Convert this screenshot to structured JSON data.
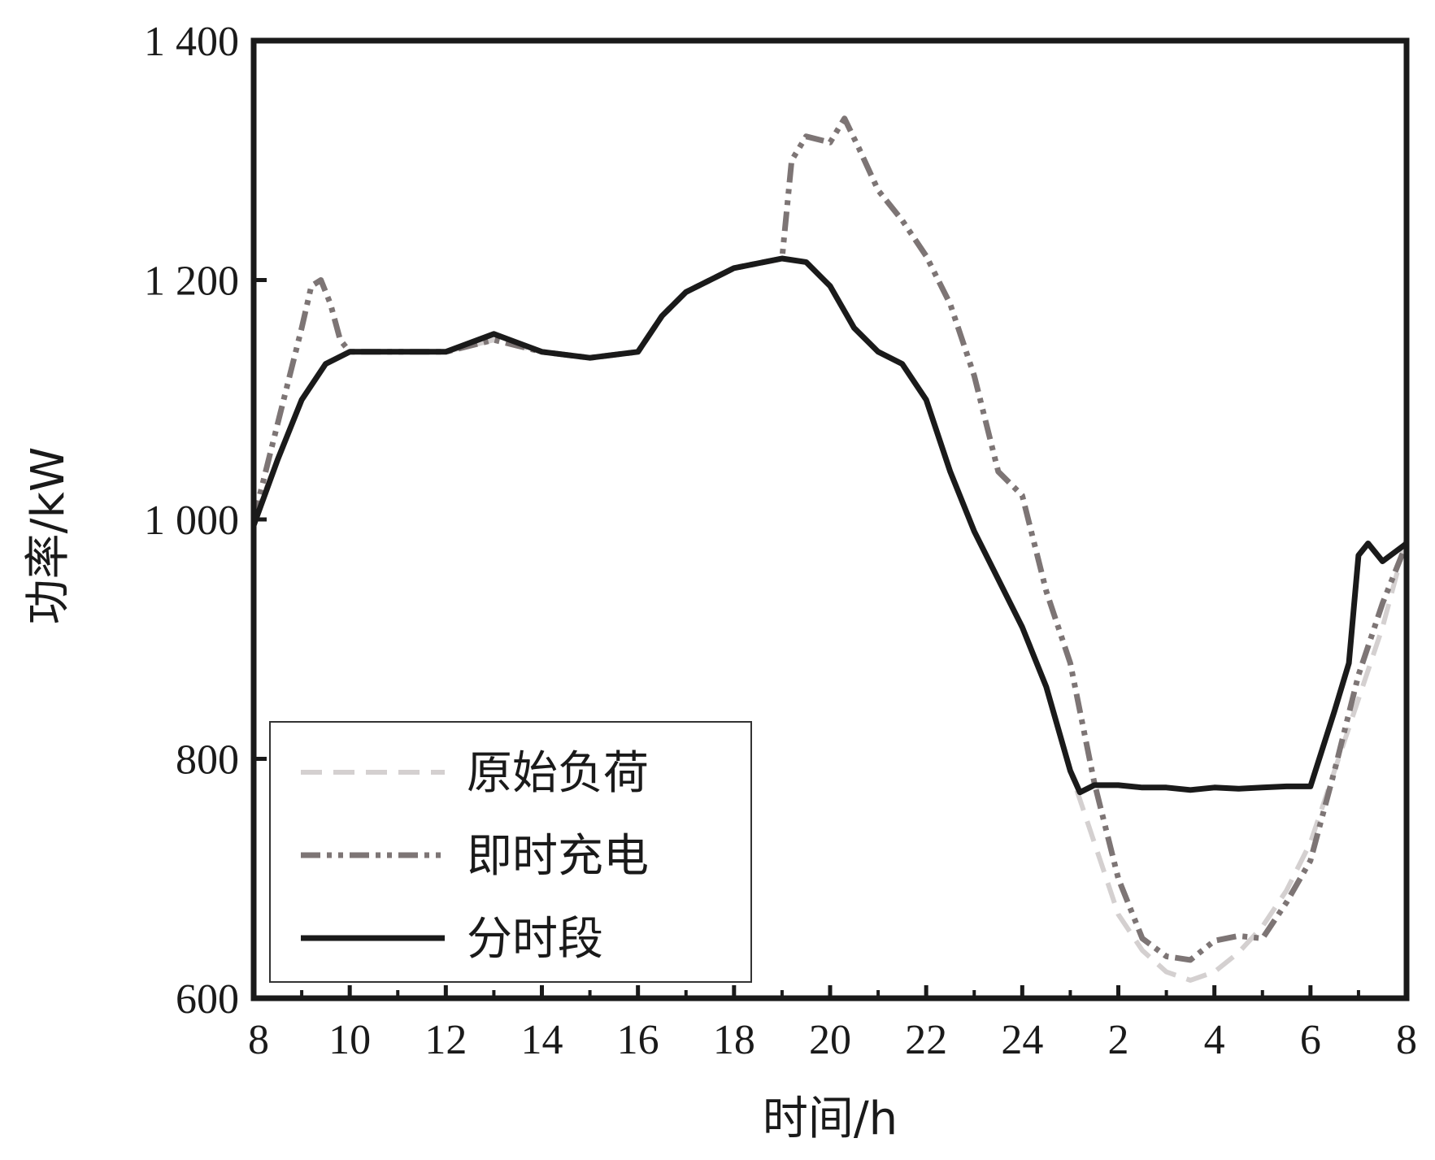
{
  "chart_data": {
    "type": "line",
    "title": "",
    "xlabel": "时间/h",
    "ylabel": "功率/kW",
    "ylim": [
      600,
      1400
    ],
    "xlim_hours_elapsed": [
      0,
      24
    ],
    "x_tick_labels": [
      "8",
      "10",
      "12",
      "14",
      "16",
      "18",
      "20",
      "22",
      "24",
      "2",
      "4",
      "6",
      "8"
    ],
    "y_tick_labels": [
      "600",
      "800",
      "1 000",
      "1 200",
      "1 400"
    ],
    "y_tick_values": [
      600,
      800,
      1000,
      1200,
      1400
    ],
    "grid": false,
    "legend_position": "bottom-left",
    "series": [
      {
        "name": "原始负荷",
        "style": "dashed",
        "color": "#d4d0d0",
        "x": [
          8,
          8.5,
          9,
          9.5,
          10,
          11,
          12,
          13,
          14,
          15,
          16,
          16.5,
          17,
          18,
          19,
          19.5,
          20,
          20.5,
          21,
          21.5,
          22,
          22.5,
          23,
          23.5,
          24,
          24.5,
          25,
          25.5,
          26,
          26.5,
          27,
          27.5,
          28,
          28.5,
          29,
          29.5,
          30,
          30.5,
          31,
          31.5,
          32
        ],
        "values": [
          1000,
          1050,
          1100,
          1130,
          1140,
          1140,
          1140,
          1150,
          1140,
          1135,
          1140,
          1170,
          1190,
          1210,
          1218,
          1215,
          1195,
          1160,
          1140,
          1130,
          1100,
          1040,
          990,
          950,
          910,
          860,
          790,
          730,
          670,
          640,
          622,
          615,
          622,
          638,
          660,
          690,
          730,
          790,
          850,
          910,
          985
        ]
      },
      {
        "name": "即时充电",
        "style": "dash-dot-dot",
        "color": "#7d7575",
        "x": [
          8,
          8.5,
          9,
          9.2,
          9.4,
          9.6,
          9.8,
          10,
          11,
          12,
          13,
          14,
          15,
          16,
          16.5,
          17,
          18,
          19,
          19.2,
          19.5,
          20,
          20.3,
          20.6,
          21,
          21.5,
          22,
          22.5,
          23,
          23.5,
          24,
          24.5,
          25,
          25.5,
          26,
          26.5,
          27,
          27.5,
          28,
          28.5,
          29,
          29.5,
          30,
          30.5,
          31,
          31.5,
          32
        ],
        "values": [
          1000,
          1080,
          1160,
          1195,
          1200,
          1180,
          1150,
          1140,
          1140,
          1140,
          1150,
          1140,
          1135,
          1140,
          1170,
          1190,
          1210,
          1218,
          1300,
          1320,
          1315,
          1335,
          1310,
          1275,
          1250,
          1220,
          1180,
          1120,
          1040,
          1020,
          940,
          880,
          780,
          700,
          650,
          635,
          632,
          648,
          652,
          650,
          680,
          715,
          790,
          870,
          930,
          980
        ]
      },
      {
        "name": "分时段",
        "style": "solid",
        "color": "#1a1a1a",
        "x": [
          8,
          8.5,
          9,
          9.5,
          10,
          11,
          12,
          13,
          14,
          15,
          16,
          16.5,
          17,
          18,
          19,
          19.5,
          20,
          20.5,
          21,
          21.5,
          22,
          22.5,
          23,
          23.5,
          24,
          24.5,
          25,
          25.2,
          25.5,
          26,
          26.5,
          27,
          27.5,
          28,
          28.5,
          29,
          29.5,
          30,
          30.5,
          30.8,
          31,
          31.2,
          31.5,
          32
        ],
        "values": [
          995,
          1050,
          1100,
          1130,
          1140,
          1140,
          1140,
          1155,
          1140,
          1135,
          1140,
          1170,
          1190,
          1210,
          1218,
          1215,
          1195,
          1160,
          1140,
          1130,
          1100,
          1040,
          990,
          950,
          910,
          860,
          790,
          772,
          778,
          778,
          776,
          776,
          774,
          776,
          775,
          776,
          777,
          777,
          840,
          880,
          970,
          980,
          965,
          980
        ]
      }
    ]
  }
}
